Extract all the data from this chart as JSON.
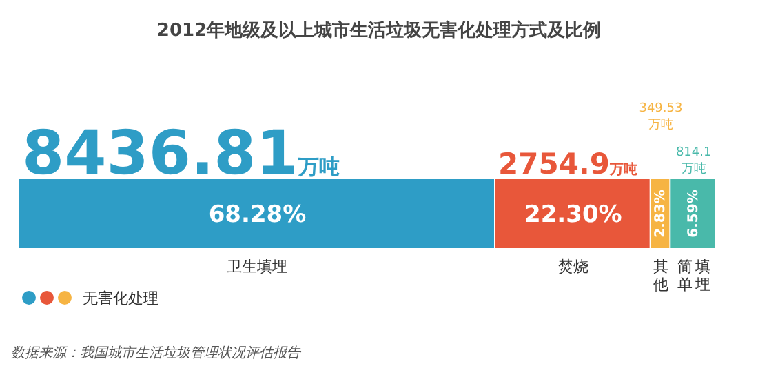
{
  "chart_data": {
    "type": "bar",
    "orientation": "horizontal",
    "stacked": true,
    "title": "2012年地级及以上城市生活垃圾无害化处理方式及比例",
    "categories": [
      null
    ],
    "xlim": [
      0,
      100
    ],
    "legend_title": "无害化处理",
    "series": [
      {
        "name": "卫生填埋",
        "color": "#2e9dc6",
        "values": [
          68.28
        ],
        "value_labels": [
          "68.28%"
        ]
      },
      {
        "name": "焚烧",
        "color": "#e8573a",
        "values": [
          22.3
        ],
        "value_labels": [
          "22.30%"
        ]
      },
      {
        "name": "其他",
        "color": "#f6b443",
        "values": [
          2.83
        ],
        "value_labels": [
          "2.83%"
        ]
      },
      {
        "name": "简单填埋",
        "color": "#49b9aa",
        "values": [
          6.59
        ],
        "value_labels": [
          "6.59%"
        ]
      }
    ],
    "annotations": [
      "8436.81万吨",
      "2754.9万吨",
      "349.53万吨",
      "814.1万吨",
      "数据来源：我国城市生活垃圾管理状况评估报告"
    ]
  }
}
